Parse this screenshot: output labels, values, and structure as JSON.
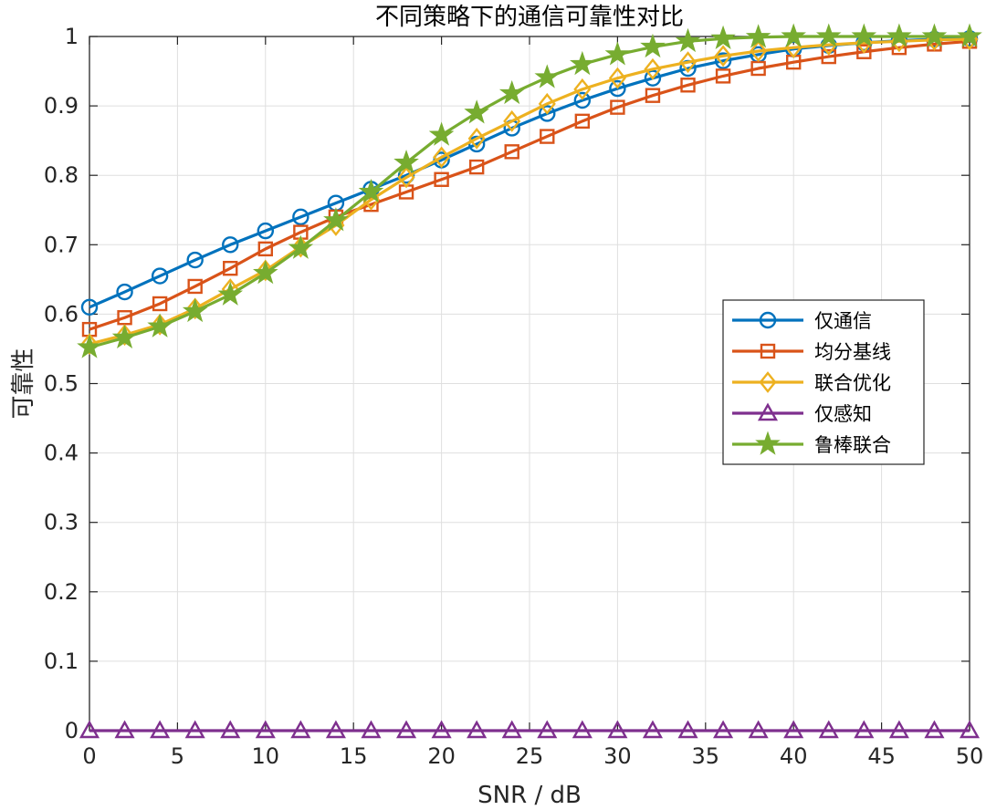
{
  "chart_data": {
    "type": "line",
    "title": "不同策略下的通信可靠性对比",
    "xlabel": "SNR / dB",
    "ylabel": "可靠性",
    "xlim": [
      0,
      50
    ],
    "ylim": [
      0,
      1
    ],
    "xticks": [
      0,
      5,
      10,
      15,
      20,
      25,
      30,
      35,
      40,
      45,
      50
    ],
    "yticks": [
      0,
      0.1,
      0.2,
      0.3,
      0.4,
      0.5,
      0.6,
      0.7,
      0.8,
      0.9,
      1
    ],
    "grid": true,
    "legend_position": "right",
    "x": [
      0,
      2,
      4,
      6,
      8,
      10,
      12,
      14,
      16,
      18,
      20,
      22,
      24,
      26,
      28,
      30,
      32,
      34,
      36,
      38,
      40,
      42,
      44,
      46,
      48,
      50
    ],
    "series": [
      {
        "name": "仅通信",
        "color": "#0072BD",
        "marker": "circle",
        "values": [
          0.61,
          0.632,
          0.655,
          0.678,
          0.7,
          0.72,
          0.74,
          0.76,
          0.78,
          0.8,
          0.822,
          0.845,
          0.868,
          0.889,
          0.908,
          0.925,
          0.94,
          0.954,
          0.965,
          0.974,
          0.982,
          0.987,
          0.991,
          0.994,
          0.996,
          0.997
        ]
      },
      {
        "name": "均分基线",
        "color": "#D95319",
        "marker": "square",
        "values": [
          0.578,
          0.595,
          0.615,
          0.64,
          0.666,
          0.694,
          0.718,
          0.74,
          0.758,
          0.776,
          0.794,
          0.812,
          0.834,
          0.856,
          0.878,
          0.898,
          0.915,
          0.93,
          0.943,
          0.954,
          0.963,
          0.971,
          0.978,
          0.984,
          0.989,
          0.993
        ]
      },
      {
        "name": "联合优化",
        "color": "#EDB120",
        "marker": "diamond",
        "values": [
          0.557,
          0.57,
          0.585,
          0.608,
          0.636,
          0.663,
          0.697,
          0.728,
          0.765,
          0.797,
          0.826,
          0.853,
          0.878,
          0.903,
          0.924,
          0.94,
          0.953,
          0.963,
          0.972,
          0.979,
          0.984,
          0.988,
          0.991,
          0.993,
          0.995,
          0.996
        ]
      },
      {
        "name": "仅感知",
        "color": "#7E2F8E",
        "marker": "triangle",
        "values": [
          0,
          0,
          0,
          0,
          0,
          0,
          0,
          0,
          0,
          0,
          0,
          0,
          0,
          0,
          0,
          0,
          0,
          0,
          0,
          0,
          0,
          0,
          0,
          0,
          0,
          0
        ]
      },
      {
        "name": "鲁棒联合",
        "color": "#77AC30",
        "marker": "star",
        "values": [
          0.552,
          0.566,
          0.582,
          0.604,
          0.628,
          0.659,
          0.695,
          0.735,
          0.776,
          0.818,
          0.858,
          0.89,
          0.918,
          0.941,
          0.96,
          0.974,
          0.985,
          0.993,
          0.997,
          0.999,
          1.0,
          1.0,
          1.0,
          1.0,
          1.0,
          1.0
        ]
      }
    ]
  }
}
